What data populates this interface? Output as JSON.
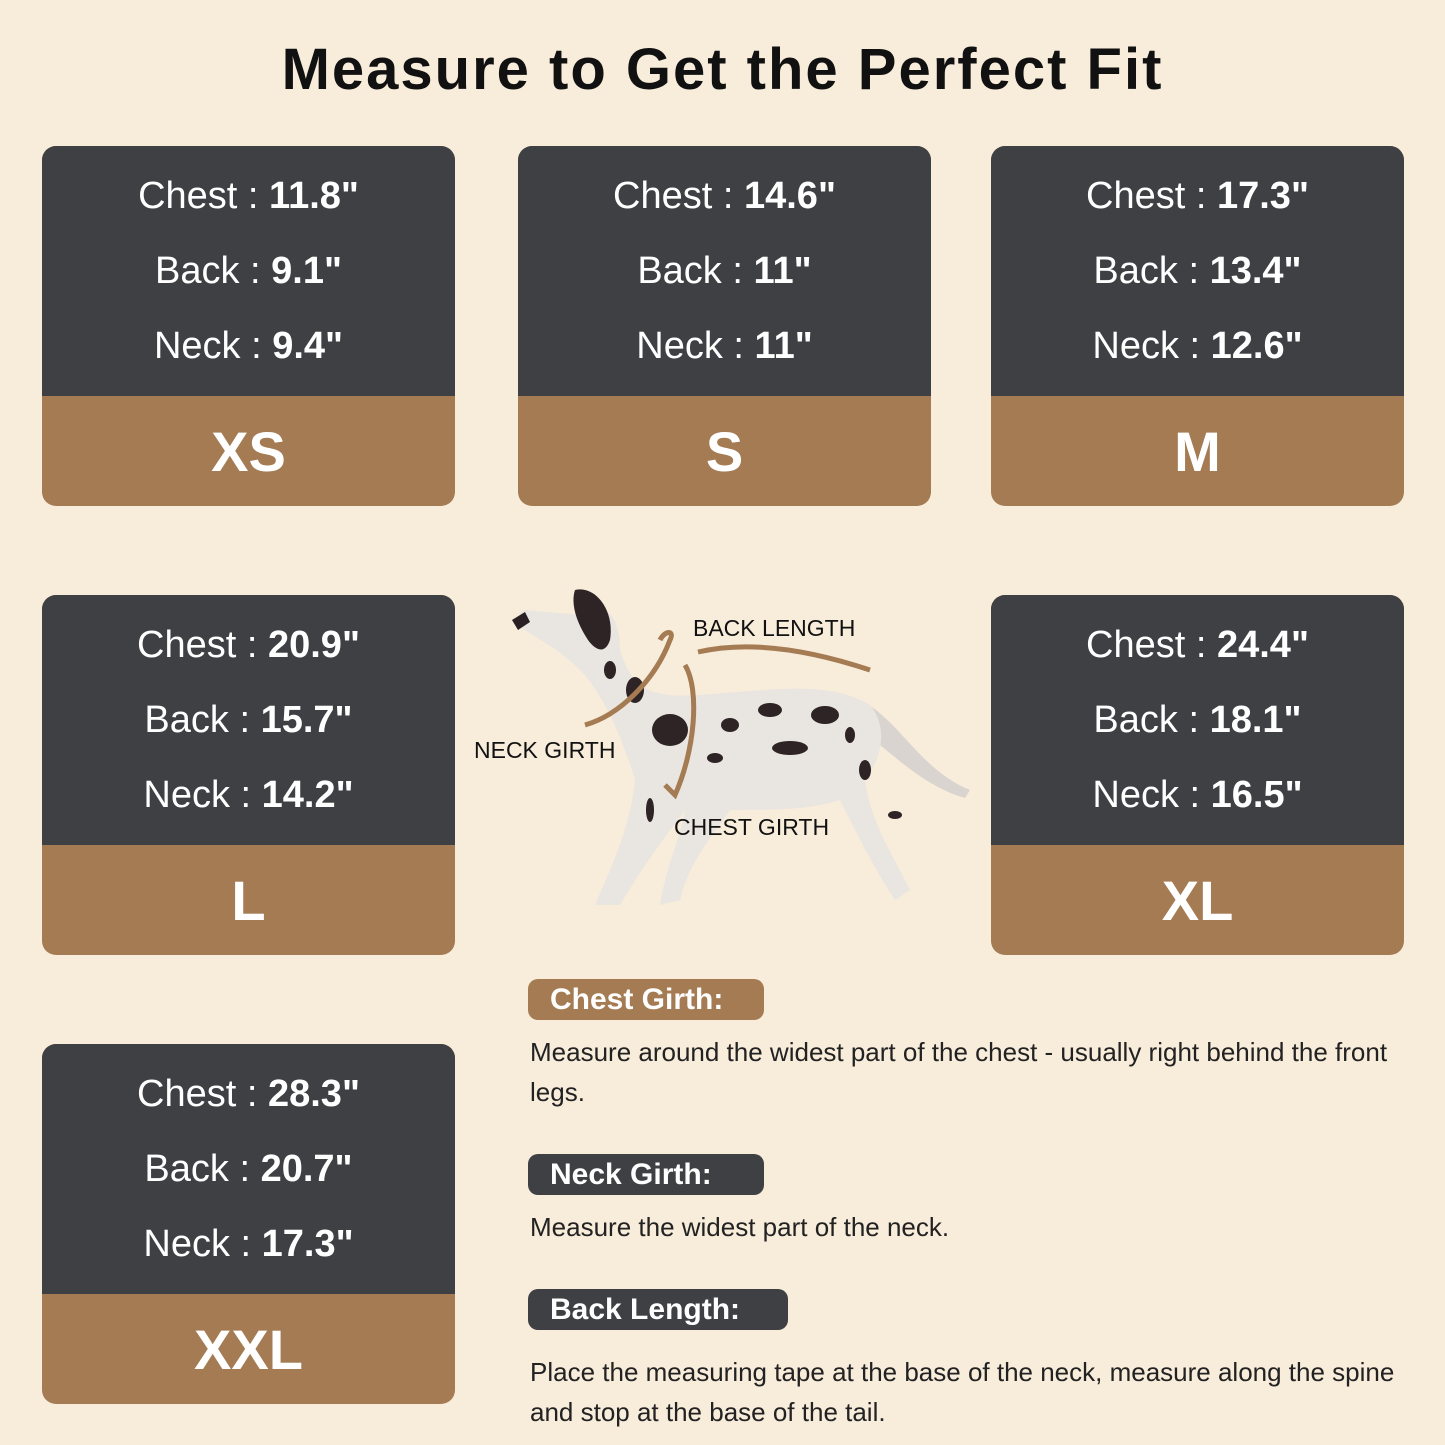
{
  "title": "Measure to Get the Perfect Fit",
  "labels": {
    "chest": "Chest",
    "back": "Back",
    "neck": "Neck",
    "sep": " : "
  },
  "sizes": [
    {
      "size": "XS",
      "chest": "11.8\"",
      "back": "9.1\"",
      "neck": "9.4\""
    },
    {
      "size": "S",
      "chest": "14.6\"",
      "back": "11\"",
      "neck": "11\""
    },
    {
      "size": "M",
      "chest": "17.3\"",
      "back": "13.4\"",
      "neck": "12.6\""
    },
    {
      "size": "L",
      "chest": "20.9\"",
      "back": "15.7\"",
      "neck": "14.2\""
    },
    {
      "size": "XL",
      "chest": "24.4\"",
      "back": "18.1\"",
      "neck": "16.5\""
    },
    {
      "size": "XXL",
      "chest": "28.3\"",
      "back": "20.7\"",
      "neck": "17.3\""
    }
  ],
  "diagram": {
    "back_length": "BACK LENGTH",
    "neck_girth": "NECK GIRTH",
    "chest_girth": "CHEST GIRTH"
  },
  "instructions": [
    {
      "heading": "Chest Girth:",
      "text": "Measure around the widest part of the chest - usually right behind the front legs."
    },
    {
      "heading": "Neck Girth:",
      "text": "Measure the widest part of the neck."
    },
    {
      "heading": "Back Length:",
      "text": "Place the measuring tape at the base of the neck, measure along the spine and stop at the base of the tail."
    }
  ],
  "colors": {
    "background": "#f8ecdb",
    "card_dark": "#3f4044",
    "accent_brown": "#a47b52"
  }
}
